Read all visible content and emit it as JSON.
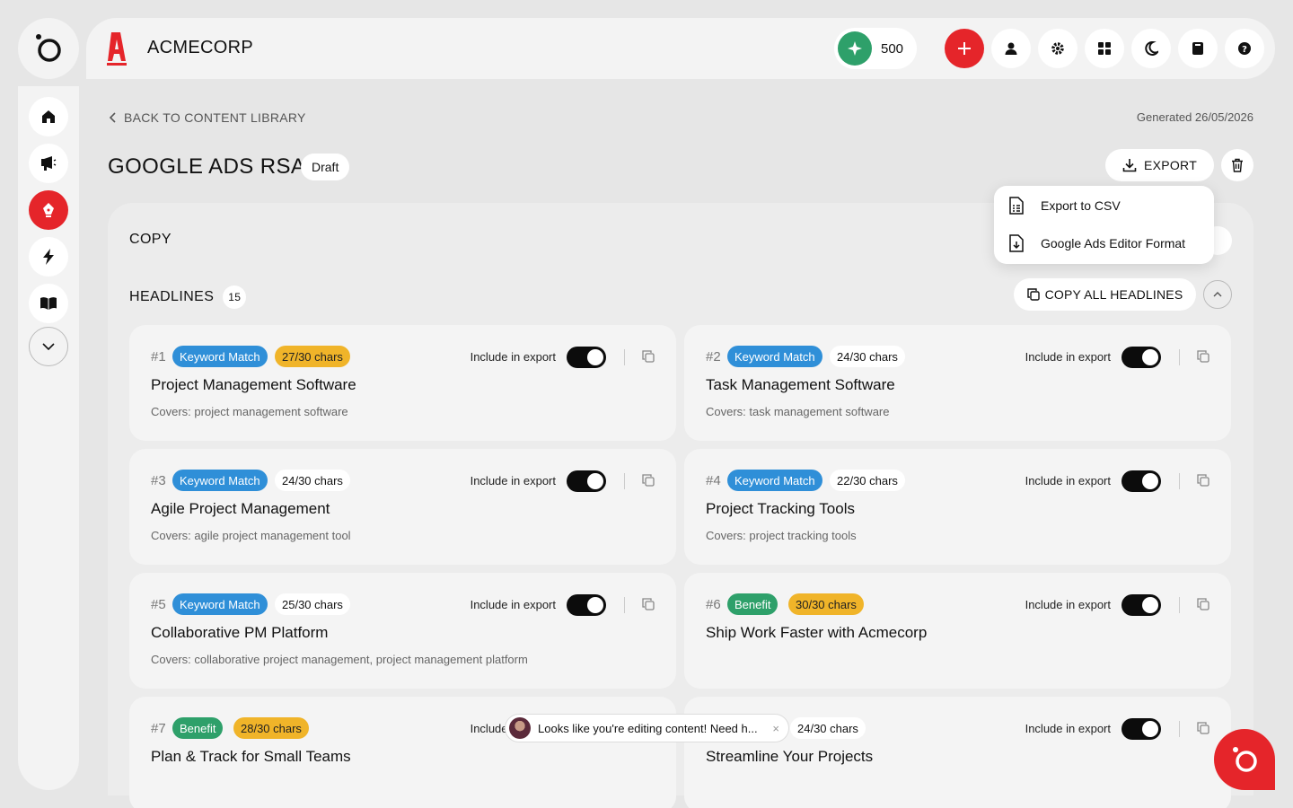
{
  "brand": {
    "name": "ACMECORP",
    "mark_color": "#e5252a"
  },
  "header": {
    "credits_value": "500",
    "icons": [
      "plus-icon",
      "user-icon",
      "gear-icon",
      "grid-icon",
      "moon-icon",
      "book-icon",
      "help-icon"
    ]
  },
  "sidebar": {
    "items": [
      "home-icon",
      "megaphone-icon",
      "pen-nib-icon",
      "bolt-icon",
      "book-open-icon",
      "chevron-down-icon"
    ],
    "active": "pen-nib-icon"
  },
  "page": {
    "back_label": "BACK TO CONTENT LIBRARY",
    "generated": "Generated 26/05/2026",
    "title": "GOOGLE ADS RSA",
    "status": "Draft",
    "export_label": "EXPORT"
  },
  "export_menu": {
    "items": [
      "Export to CSV",
      "Google Ads Editor Format"
    ]
  },
  "copy_section": {
    "heading": "COPY",
    "headlines_heading": "HEADLINES",
    "headlines_count": "15",
    "copy_all_label": "COPY ALL HEADLINES"
  },
  "include_label": "Include in export",
  "headlines": [
    {
      "num": "#1",
      "tag": "Keyword Match",
      "tag_color": "blue",
      "chars": "27/30 chars",
      "chars_warn": true,
      "title": "Project Management Software",
      "covers": "Covers: project management software"
    },
    {
      "num": "#2",
      "tag": "Keyword Match",
      "tag_color": "blue",
      "chars": "24/30 chars",
      "chars_warn": false,
      "title": "Task Management Software",
      "covers": "Covers: task management software"
    },
    {
      "num": "#3",
      "tag": "Keyword Match",
      "tag_color": "blue",
      "chars": "24/30 chars",
      "chars_warn": false,
      "title": "Agile Project Management",
      "covers": "Covers: agile project management tool"
    },
    {
      "num": "#4",
      "tag": "Keyword Match",
      "tag_color": "blue",
      "chars": "22/30 chars",
      "chars_warn": false,
      "title": "Project Tracking Tools",
      "covers": "Covers: project tracking tools"
    },
    {
      "num": "#5",
      "tag": "Keyword Match",
      "tag_color": "blue",
      "chars": "25/30 chars",
      "chars_warn": false,
      "title": "Collaborative PM Platform",
      "covers": "Covers: collaborative project management, project management platform"
    },
    {
      "num": "#6",
      "tag": "Benefit",
      "tag_color": "green",
      "chars": "30/30 chars",
      "chars_warn": true,
      "title": "Ship Work Faster with Acmecorp",
      "covers": ""
    },
    {
      "num": "#7",
      "tag": "Benefit",
      "tag_color": "green",
      "chars": "28/30 chars",
      "chars_warn": true,
      "title": "Plan & Track for Small Teams",
      "covers": ""
    },
    {
      "num": "",
      "tag": "",
      "tag_color": "",
      "chars": "24/30 chars",
      "chars_warn": false,
      "title": "Streamline Your Projects",
      "covers": ""
    }
  ],
  "toast": {
    "text": "Looks like you're editing content! Need h...",
    "close": "×"
  },
  "colors": {
    "accent": "#e5252a",
    "keyword_tag": "#2f8fd8",
    "benefit_tag": "#2ea06a",
    "chars_warn": "#f0b429"
  }
}
